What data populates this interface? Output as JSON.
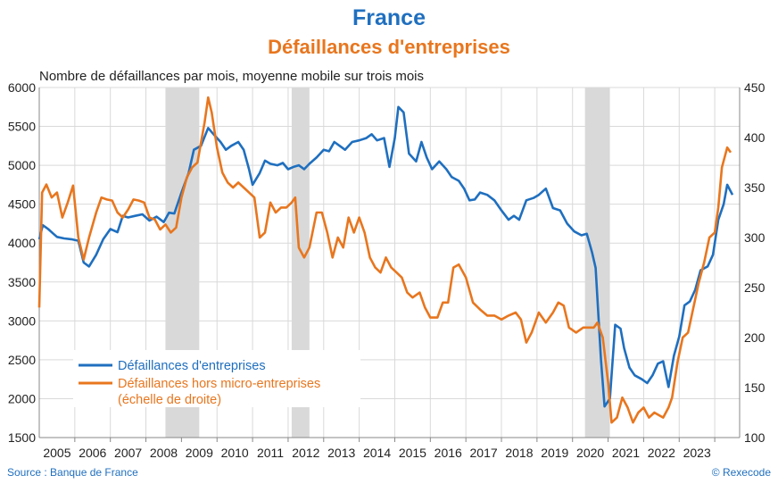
{
  "chart_data": {
    "type": "line",
    "title": "France",
    "subtitle": "Défaillances d'entreprises",
    "caption": "Nombre de défaillances par mois, moyenne mobile sur trois mois",
    "source": "Source : Banque de France",
    "credit": "© Rexecode",
    "x_ticks": [
      "2005",
      "2006",
      "2007",
      "2008",
      "2009",
      "2010",
      "2011",
      "2012",
      "2013",
      "2014",
      "2015",
      "2016",
      "2017",
      "2018",
      "2019",
      "2020",
      "2021",
      "2022",
      "2023"
    ],
    "y_left": {
      "ticks": [
        1500,
        2000,
        2500,
        3000,
        3500,
        4000,
        4500,
        5000,
        5500,
        6000
      ],
      "lim": [
        1500,
        6000
      ]
    },
    "y_right": {
      "ticks": [
        100,
        150,
        200,
        250,
        300,
        350,
        400,
        450
      ],
      "lim": [
        100,
        450
      ]
    },
    "grid": true,
    "legend_placement": "bottom-left",
    "recession_shading": [
      [
        2008.05,
        2009.0
      ],
      [
        2011.6,
        2012.1
      ],
      [
        2019.85,
        2020.55
      ]
    ],
    "colors": {
      "series1": "#1f6fbf",
      "series2": "#e8761e",
      "shade": "#d9d9d9"
    },
    "series": [
      {
        "name": "Défaillances d'entreprises",
        "axis": "left",
        "points": [
          [
            2004.5,
            4050
          ],
          [
            2004.6,
            4230
          ],
          [
            2004.75,
            4180
          ],
          [
            2004.9,
            4120
          ],
          [
            2005.0,
            4080
          ],
          [
            2005.2,
            4060
          ],
          [
            2005.4,
            4050
          ],
          [
            2005.6,
            4030
          ],
          [
            2005.75,
            3750
          ],
          [
            2005.9,
            3700
          ],
          [
            2006.1,
            3850
          ],
          [
            2006.3,
            4050
          ],
          [
            2006.5,
            4180
          ],
          [
            2006.7,
            4140
          ],
          [
            2006.85,
            4350
          ],
          [
            2007.0,
            4330
          ],
          [
            2007.2,
            4350
          ],
          [
            2007.4,
            4370
          ],
          [
            2007.6,
            4290
          ],
          [
            2007.8,
            4340
          ],
          [
            2008.0,
            4270
          ],
          [
            2008.15,
            4390
          ],
          [
            2008.3,
            4380
          ],
          [
            2008.5,
            4650
          ],
          [
            2008.7,
            4900
          ],
          [
            2008.85,
            5200
          ],
          [
            2009.05,
            5250
          ],
          [
            2009.25,
            5480
          ],
          [
            2009.4,
            5400
          ],
          [
            2009.6,
            5300
          ],
          [
            2009.75,
            5200
          ],
          [
            2009.9,
            5250
          ],
          [
            2010.1,
            5300
          ],
          [
            2010.25,
            5200
          ],
          [
            2010.4,
            4950
          ],
          [
            2010.5,
            4750
          ],
          [
            2010.7,
            4900
          ],
          [
            2010.85,
            5060
          ],
          [
            2011.0,
            5020
          ],
          [
            2011.2,
            5000
          ],
          [
            2011.35,
            5030
          ],
          [
            2011.5,
            4950
          ],
          [
            2011.65,
            4980
          ],
          [
            2011.8,
            5000
          ],
          [
            2011.95,
            4950
          ],
          [
            2012.1,
            5020
          ],
          [
            2012.3,
            5100
          ],
          [
            2012.5,
            5200
          ],
          [
            2012.65,
            5180
          ],
          [
            2012.8,
            5300
          ],
          [
            2012.95,
            5250
          ],
          [
            2013.1,
            5200
          ],
          [
            2013.3,
            5300
          ],
          [
            2013.5,
            5320
          ],
          [
            2013.7,
            5350
          ],
          [
            2013.85,
            5400
          ],
          [
            2014.0,
            5320
          ],
          [
            2014.2,
            5350
          ],
          [
            2014.35,
            4980
          ],
          [
            2014.5,
            5350
          ],
          [
            2014.6,
            5750
          ],
          [
            2014.75,
            5680
          ],
          [
            2014.9,
            5150
          ],
          [
            2015.1,
            5050
          ],
          [
            2015.25,
            5300
          ],
          [
            2015.4,
            5100
          ],
          [
            2015.55,
            4950
          ],
          [
            2015.75,
            5050
          ],
          [
            2015.95,
            4950
          ],
          [
            2016.1,
            4850
          ],
          [
            2016.3,
            4800
          ],
          [
            2016.45,
            4700
          ],
          [
            2016.6,
            4550
          ],
          [
            2016.75,
            4560
          ],
          [
            2016.9,
            4650
          ],
          [
            2017.1,
            4620
          ],
          [
            2017.3,
            4550
          ],
          [
            2017.5,
            4420
          ],
          [
            2017.7,
            4300
          ],
          [
            2017.85,
            4350
          ],
          [
            2018.0,
            4300
          ],
          [
            2018.2,
            4550
          ],
          [
            2018.4,
            4580
          ],
          [
            2018.55,
            4620
          ],
          [
            2018.75,
            4700
          ],
          [
            2018.95,
            4450
          ],
          [
            2019.15,
            4420
          ],
          [
            2019.35,
            4250
          ],
          [
            2019.55,
            4150
          ],
          [
            2019.75,
            4100
          ],
          [
            2019.9,
            4120
          ],
          [
            2020.05,
            3880
          ],
          [
            2020.15,
            3680
          ],
          [
            2020.3,
            2500
          ],
          [
            2020.4,
            1900
          ],
          [
            2020.55,
            2000
          ],
          [
            2020.7,
            2950
          ],
          [
            2020.85,
            2900
          ],
          [
            2020.95,
            2650
          ],
          [
            2021.1,
            2400
          ],
          [
            2021.25,
            2300
          ],
          [
            2021.45,
            2250
          ],
          [
            2021.6,
            2200
          ],
          [
            2021.75,
            2300
          ],
          [
            2021.9,
            2450
          ],
          [
            2022.05,
            2480
          ],
          [
            2022.2,
            2150
          ],
          [
            2022.35,
            2550
          ],
          [
            2022.5,
            2800
          ],
          [
            2022.65,
            3200
          ],
          [
            2022.8,
            3250
          ],
          [
            2022.95,
            3400
          ],
          [
            2023.1,
            3650
          ],
          [
            2023.3,
            3700
          ],
          [
            2023.45,
            3850
          ],
          [
            2023.6,
            4300
          ],
          [
            2023.75,
            4500
          ],
          [
            2023.85,
            4750
          ],
          [
            2024.0,
            4620
          ]
        ]
      },
      {
        "name": "Défaillances hors micro-entreprises (échelle de droite)",
        "axis": "right",
        "points": [
          [
            2004.5,
            230
          ],
          [
            2004.58,
            345
          ],
          [
            2004.7,
            353
          ],
          [
            2004.85,
            340
          ],
          [
            2005.0,
            345
          ],
          [
            2005.15,
            320
          ],
          [
            2005.3,
            335
          ],
          [
            2005.45,
            352
          ],
          [
            2005.6,
            300
          ],
          [
            2005.75,
            278
          ],
          [
            2005.9,
            300
          ],
          [
            2006.1,
            325
          ],
          [
            2006.25,
            340
          ],
          [
            2006.4,
            338
          ],
          [
            2006.55,
            337
          ],
          [
            2006.7,
            325
          ],
          [
            2006.85,
            320
          ],
          [
            2007.0,
            328
          ],
          [
            2007.15,
            338
          ],
          [
            2007.3,
            337
          ],
          [
            2007.45,
            335
          ],
          [
            2007.6,
            320
          ],
          [
            2007.75,
            318
          ],
          [
            2007.9,
            308
          ],
          [
            2008.05,
            313
          ],
          [
            2008.2,
            305
          ],
          [
            2008.35,
            310
          ],
          [
            2008.5,
            340
          ],
          [
            2008.65,
            360
          ],
          [
            2008.8,
            370
          ],
          [
            2008.95,
            375
          ],
          [
            2009.05,
            395
          ],
          [
            2009.15,
            415
          ],
          [
            2009.25,
            440
          ],
          [
            2009.35,
            425
          ],
          [
            2009.5,
            390
          ],
          [
            2009.65,
            365
          ],
          [
            2009.8,
            355
          ],
          [
            2009.95,
            350
          ],
          [
            2010.1,
            355
          ],
          [
            2010.25,
            350
          ],
          [
            2010.4,
            345
          ],
          [
            2010.55,
            340
          ],
          [
            2010.7,
            300
          ],
          [
            2010.85,
            305
          ],
          [
            2011.0,
            335
          ],
          [
            2011.15,
            325
          ],
          [
            2011.3,
            330
          ],
          [
            2011.45,
            330
          ],
          [
            2011.6,
            335
          ],
          [
            2011.7,
            340
          ],
          [
            2011.8,
            290
          ],
          [
            2011.95,
            280
          ],
          [
            2012.1,
            290
          ],
          [
            2012.3,
            325
          ],
          [
            2012.45,
            325
          ],
          [
            2012.6,
            305
          ],
          [
            2012.75,
            280
          ],
          [
            2012.9,
            300
          ],
          [
            2013.05,
            290
          ],
          [
            2013.2,
            320
          ],
          [
            2013.35,
            305
          ],
          [
            2013.5,
            320
          ],
          [
            2013.65,
            305
          ],
          [
            2013.8,
            280
          ],
          [
            2013.95,
            270
          ],
          [
            2014.1,
            265
          ],
          [
            2014.25,
            280
          ],
          [
            2014.4,
            270
          ],
          [
            2014.55,
            265
          ],
          [
            2014.7,
            260
          ],
          [
            2014.85,
            245
          ],
          [
            2015.0,
            240
          ],
          [
            2015.2,
            245
          ],
          [
            2015.35,
            230
          ],
          [
            2015.5,
            220
          ],
          [
            2015.7,
            220
          ],
          [
            2015.85,
            235
          ],
          [
            2016.0,
            235
          ],
          [
            2016.15,
            270
          ],
          [
            2016.3,
            273
          ],
          [
            2016.5,
            260
          ],
          [
            2016.7,
            235
          ],
          [
            2016.9,
            228
          ],
          [
            2017.1,
            222
          ],
          [
            2017.3,
            222
          ],
          [
            2017.5,
            218
          ],
          [
            2017.7,
            222
          ],
          [
            2017.9,
            225
          ],
          [
            2018.05,
            218
          ],
          [
            2018.2,
            195
          ],
          [
            2018.35,
            205
          ],
          [
            2018.55,
            225
          ],
          [
            2018.75,
            215
          ],
          [
            2018.95,
            225
          ],
          [
            2019.1,
            235
          ],
          [
            2019.25,
            232
          ],
          [
            2019.4,
            210
          ],
          [
            2019.6,
            205
          ],
          [
            2019.8,
            210
          ],
          [
            2019.95,
            210
          ],
          [
            2020.1,
            210
          ],
          [
            2020.2,
            215
          ],
          [
            2020.35,
            200
          ],
          [
            2020.5,
            155
          ],
          [
            2020.6,
            115
          ],
          [
            2020.75,
            120
          ],
          [
            2020.9,
            140
          ],
          [
            2021.05,
            130
          ],
          [
            2021.2,
            115
          ],
          [
            2021.35,
            125
          ],
          [
            2021.5,
            130
          ],
          [
            2021.65,
            120
          ],
          [
            2021.8,
            125
          ],
          [
            2021.95,
            122
          ],
          [
            2022.05,
            120
          ],
          [
            2022.2,
            130
          ],
          [
            2022.3,
            140
          ],
          [
            2022.45,
            175
          ],
          [
            2022.6,
            200
          ],
          [
            2022.75,
            205
          ],
          [
            2022.9,
            230
          ],
          [
            2023.05,
            255
          ],
          [
            2023.2,
            275
          ],
          [
            2023.35,
            300
          ],
          [
            2023.5,
            305
          ],
          [
            2023.6,
            330
          ],
          [
            2023.7,
            370
          ],
          [
            2023.85,
            390
          ],
          [
            2023.95,
            385
          ]
        ]
      }
    ]
  }
}
